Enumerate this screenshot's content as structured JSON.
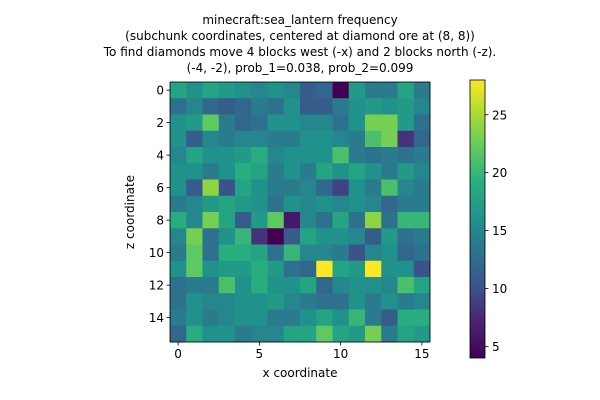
{
  "chart_data": {
    "type": "heatmap",
    "title_lines": [
      "minecraft:sea_lantern frequency",
      "(subchunk coordinates, centered at diamond ore at (8, 8))",
      "To find diamonds move 4 blocks west (-x) and 2 blocks north (-z).",
      "(-4, -2), prob_1=0.038, prob_2=0.099"
    ],
    "xlabel": "x coordinate",
    "ylabel": "z coordinate",
    "x_ticks": [
      0,
      5,
      10,
      15
    ],
    "y_ticks": [
      0,
      2,
      4,
      6,
      8,
      10,
      12,
      14
    ],
    "colorbar_ticks": [
      5,
      10,
      15,
      20,
      25
    ],
    "colormap": "viridis",
    "vmin": 4,
    "vmax": 28,
    "grid": false,
    "values": [
      [
        18,
        16,
        18,
        17,
        16,
        15,
        16,
        15,
        11,
        12,
        4,
        17,
        14,
        14,
        18,
        14
      ],
      [
        13,
        15,
        12,
        11,
        12,
        14,
        13,
        16,
        11,
        11,
        14,
        16,
        17,
        16,
        17,
        15
      ],
      [
        16,
        17,
        22,
        14,
        12,
        13,
        16,
        16,
        15,
        15,
        13,
        16,
        23,
        23,
        17,
        13
      ],
      [
        16,
        11,
        15,
        14,
        15,
        15,
        14,
        14,
        16,
        16,
        15,
        14,
        21,
        23,
        8,
        12
      ],
      [
        15,
        18,
        16,
        16,
        17,
        19,
        15,
        16,
        16,
        16,
        21,
        14,
        13,
        14,
        13,
        14
      ],
      [
        16,
        16,
        14,
        16,
        19,
        18,
        14,
        16,
        14,
        18,
        16,
        18,
        16,
        14,
        17,
        15
      ],
      [
        16,
        11,
        24,
        10,
        18,
        16,
        14,
        14,
        15,
        12,
        9,
        16,
        14,
        21,
        15,
        14
      ],
      [
        14,
        15,
        17,
        18,
        17,
        16,
        13,
        16,
        15,
        16,
        15,
        16,
        15,
        12,
        14,
        14
      ],
      [
        19,
        15,
        23,
        18,
        11,
        17,
        22,
        6,
        15,
        13,
        18,
        13,
        24,
        13,
        20,
        20
      ],
      [
        15,
        23,
        13,
        16,
        20,
        8,
        3,
        11,
        18,
        16,
        16,
        15,
        11,
        17,
        13,
        14
      ],
      [
        14,
        22,
        13,
        19,
        19,
        18,
        13,
        20,
        15,
        15,
        14,
        10,
        15,
        16,
        12,
        13
      ],
      [
        16,
        22,
        16,
        17,
        17,
        19,
        17,
        13,
        12,
        28,
        18,
        17,
        28,
        16,
        16,
        10
      ],
      [
        13,
        14,
        14,
        21,
        16,
        19,
        16,
        16,
        18,
        12,
        15,
        16,
        16,
        15,
        21,
        18
      ],
      [
        13,
        16,
        15,
        15,
        16,
        16,
        17,
        15,
        14,
        13,
        13,
        16,
        14,
        16,
        14,
        15
      ],
      [
        14,
        16,
        14,
        15,
        16,
        16,
        14,
        14,
        16,
        18,
        16,
        20,
        14,
        11,
        19,
        19
      ],
      [
        12,
        19,
        16,
        16,
        14,
        15,
        15,
        18,
        18,
        22,
        18,
        17,
        23,
        14,
        18,
        17
      ]
    ]
  }
}
